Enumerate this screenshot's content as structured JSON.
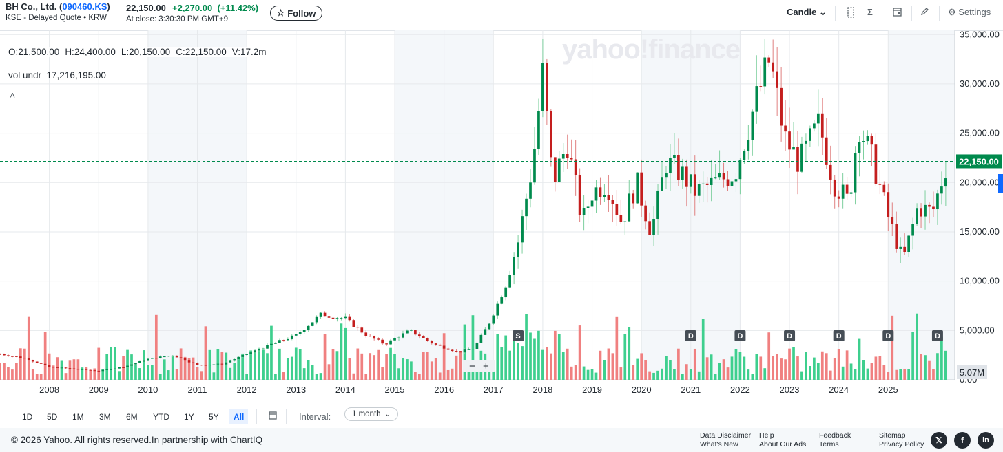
{
  "header": {
    "name_prefix": "BH Co., Ltd. (",
    "symbol": "090460.KS",
    "name_suffix": ")",
    "subtitle": "KSE - Delayed Quote • KRW",
    "price": "22,150.00",
    "change": "+2,270.00",
    "change_pct": "(+11.42%)",
    "at_close": "At close: 3:30:30 PM GMT+9",
    "follow_label": "Follow"
  },
  "toolbar": {
    "chart_type": "Candle",
    "settings_label": "Settings"
  },
  "legend": {
    "open": "O:21,500.00",
    "high": "H:24,400.00",
    "low": "L:20,150.00",
    "close": "C:22,150.00",
    "volume": "V:17.2m",
    "vol_undr_label": "vol undr",
    "vol_undr_value": "17,216,195.00"
  },
  "watermark": "yahoo!finance",
  "colors": {
    "up": "#008a4d",
    "down": "#c41e1e",
    "up_vol": "#3ecf8e",
    "down_vol": "#f08080",
    "accent": "#0f69ff"
  },
  "chart_data": {
    "type": "candlestick",
    "interval": "1 month",
    "x_tick_labels": [
      "2008",
      "2009",
      "2010",
      "2011",
      "2012",
      "2013",
      "2014",
      "2015",
      "2016",
      "2017",
      "2018",
      "2019",
      "2020",
      "2021",
      "2022",
      "2023",
      "2024",
      "2025"
    ],
    "y_tick_labels": [
      "35,000.00",
      "30,000.00",
      "25,000.00",
      "20,000.00",
      "15,000.00",
      "10,000.00",
      "5,000.00",
      "0.00"
    ],
    "ylim": [
      0,
      35000
    ],
    "last_price_label": "22,150.00",
    "last_price": 22150,
    "volume_label": "5.07M",
    "event_markers": [
      {
        "label": "S",
        "year": 2017.5
      },
      {
        "label": "D",
        "year": 2021.0
      },
      {
        "label": "D",
        "year": 2022.0
      },
      {
        "label": "D",
        "year": 2023.0
      },
      {
        "label": "D",
        "year": 2024.0
      },
      {
        "label": "D",
        "year": 2025.0
      },
      {
        "label": "D",
        "year": 2026.0
      }
    ],
    "close_trend": [
      [
        2007.0,
        2600
      ],
      [
        2007.5,
        2200
      ],
      [
        2008.0,
        1300
      ],
      [
        2008.5,
        1100
      ],
      [
        2009.0,
        900
      ],
      [
        2009.5,
        1300
      ],
      [
        2010.0,
        2100
      ],
      [
        2010.5,
        2500
      ],
      [
        2011.0,
        1500
      ],
      [
        2011.5,
        1600
      ],
      [
        2012.0,
        2600
      ],
      [
        2012.5,
        3600
      ],
      [
        2013.0,
        4500
      ],
      [
        2013.5,
        6600
      ],
      [
        2014.0,
        6200
      ],
      [
        2014.4,
        4600
      ],
      [
        2014.8,
        3600
      ],
      [
        2015.3,
        5000
      ],
      [
        2015.8,
        3600
      ],
      [
        2016.3,
        2800
      ],
      [
        2016.6,
        3200
      ],
      [
        2016.9,
        5600
      ],
      [
        2017.2,
        9000
      ],
      [
        2017.5,
        14000
      ],
      [
        2017.8,
        22000
      ],
      [
        2018.0,
        31000
      ],
      [
        2018.2,
        20000
      ],
      [
        2018.5,
        24000
      ],
      [
        2018.8,
        16000
      ],
      [
        2019.0,
        19000
      ],
      [
        2019.3,
        20000
      ],
      [
        2019.6,
        16000
      ],
      [
        2019.9,
        20000
      ],
      [
        2020.2,
        15000
      ],
      [
        2020.5,
        22000
      ],
      [
        2020.8,
        21000
      ],
      [
        2021.1,
        19000
      ],
      [
        2021.5,
        20000
      ],
      [
        2021.9,
        21000
      ],
      [
        2022.3,
        28000
      ],
      [
        2022.6,
        32500
      ],
      [
        2022.9,
        24500
      ],
      [
        2023.2,
        22000
      ],
      [
        2023.6,
        26000
      ],
      [
        2023.9,
        20000
      ],
      [
        2024.2,
        18000
      ],
      [
        2024.4,
        26000
      ],
      [
        2024.7,
        22000
      ],
      [
        2025.0,
        16500
      ],
      [
        2025.3,
        12000
      ],
      [
        2025.6,
        17500
      ],
      [
        2025.9,
        17000
      ],
      [
        2026.2,
        22150
      ]
    ]
  },
  "ranges": [
    "1D",
    "5D",
    "1M",
    "3M",
    "6M",
    "YTD",
    "1Y",
    "5Y",
    "All"
  ],
  "active_range": "All",
  "interval": {
    "label": "Interval:",
    "value": "1 month"
  },
  "footer": {
    "copyright": "© 2026 Yahoo. All rights reserved.In partnership with ChartIQ",
    "links": [
      "Data Disclaimer",
      "What's New",
      "Help",
      "About Our Ads",
      "Feedback",
      "Terms",
      "Sitemap",
      "Privacy Policy"
    ]
  }
}
